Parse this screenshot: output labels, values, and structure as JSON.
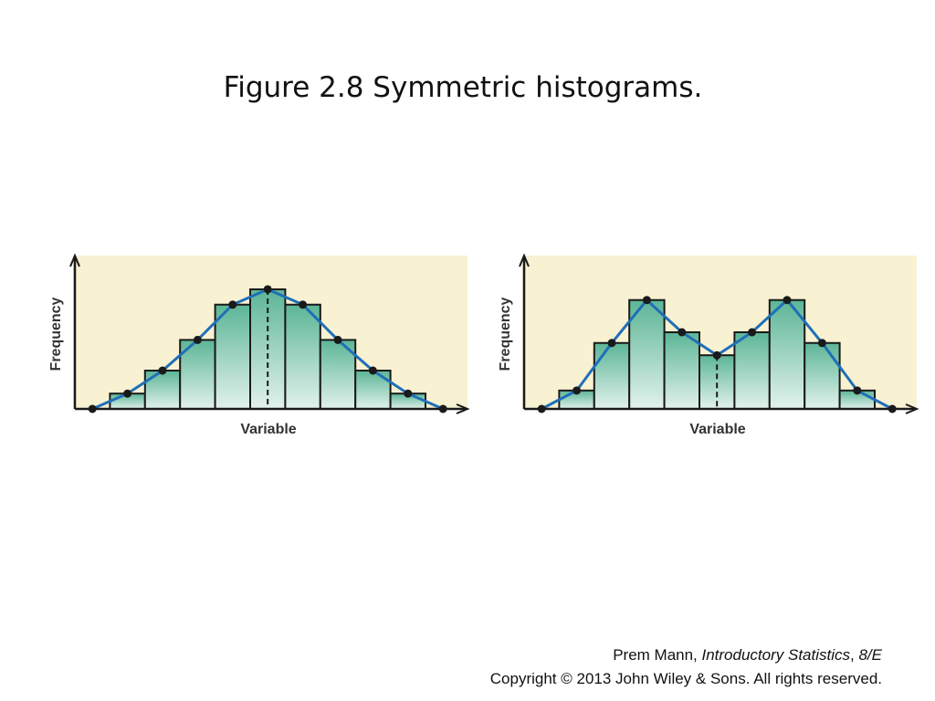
{
  "title": "Figure 2.8 Symmetric histograms.",
  "chart_data": [
    {
      "type": "histogram",
      "ylabel": "Frequency",
      "xlabel": "Variable",
      "values": [
        1,
        2.5,
        4.5,
        6.8,
        7.8,
        6.8,
        4.5,
        2.5,
        1
      ],
      "ylim": [
        0,
        10
      ],
      "color": "#5cb596",
      "line_color": "#1f6fb8",
      "background": "#f8f1d2"
    },
    {
      "type": "histogram",
      "ylabel": "Frequency",
      "xlabel": "Variable",
      "values": [
        1.2,
        4.3,
        7.1,
        5.0,
        3.5,
        5.0,
        7.1,
        4.3,
        1.2
      ],
      "ylim": [
        0,
        10
      ],
      "color": "#5cb596",
      "line_color": "#1f6fb8",
      "background": "#f8f1d2"
    }
  ],
  "footer": {
    "author": "Prem Mann, ",
    "book": "Introductory Statistics",
    "sep": ", ",
    "edition": "8/E",
    "copyright": "Copyright © 2013 John Wiley & Sons. All rights reserved."
  }
}
